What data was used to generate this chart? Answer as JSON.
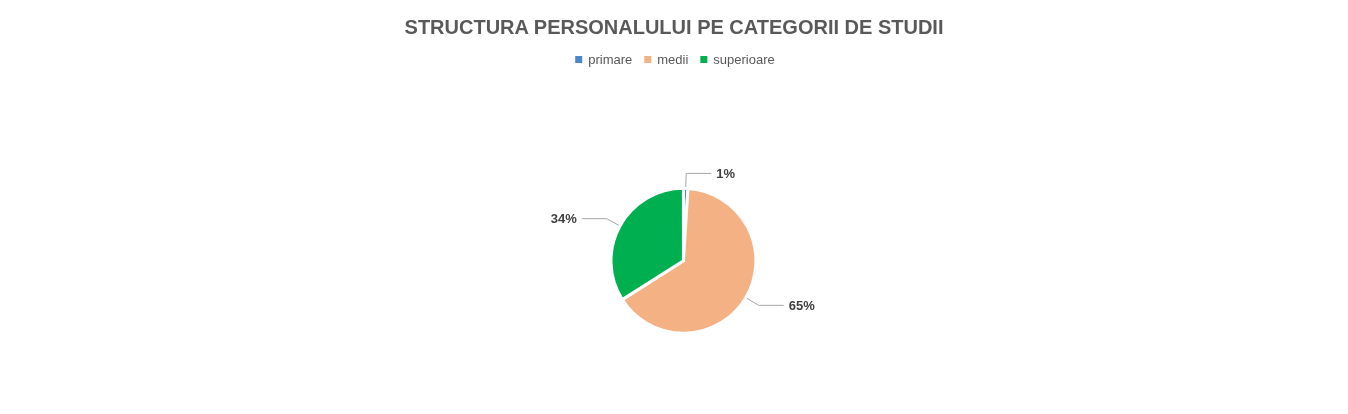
{
  "chart_data": {
    "type": "pie",
    "title": "STRUCTURA PERSONALULUI PE CATEGORII DE STUDII",
    "categories": [
      "primare",
      "medii",
      "superioare"
    ],
    "values": [
      1,
      65,
      34
    ],
    "colors": [
      "#4a86c8",
      "#f4b183",
      "#00b050"
    ],
    "value_labels": [
      "1%",
      "65%",
      "34%"
    ],
    "legend": "top"
  }
}
